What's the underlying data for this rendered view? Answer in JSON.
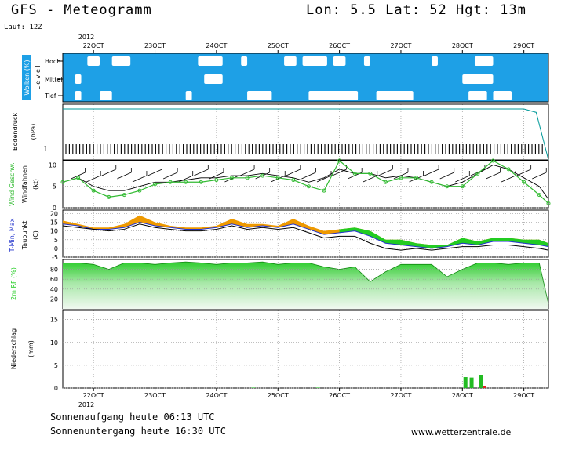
{
  "header": {
    "title": "GFS - Meteogramm",
    "location": "Lon: 5.5 Lat: 52 Hgt: 13m",
    "run": "Lauf: 12Z"
  },
  "footer": {
    "sunrise": "Sonnenaufgang heute 06:13 UTC",
    "sunset": "Sonnenuntergang heute 16:30 UTC",
    "credit": "www.wetterzentrale.de"
  },
  "colors": {
    "cloud_bg": "#1ea0e6",
    "wind": "#33bb33",
    "t_max_fill": "#ee9900",
    "t_min_fill": "#22cc22",
    "rh_fill": "#22cc22",
    "precip": "#22bb22",
    "precip_red": "#dd2222",
    "grid": "#999999"
  },
  "chart_data": [
    {
      "type": "heatmap",
      "panel": "clouds",
      "ylabel": "Wolken (%)",
      "ylabel2": "L e v e l",
      "levels": [
        "Hoch",
        "Mittel",
        "Tief"
      ],
      "x_year": "2012",
      "x_ticks": [
        "22OCT",
        "23OCT",
        "24OCT",
        "25OCT",
        "26OCT",
        "27OCT",
        "28OCT",
        "29OCT"
      ],
      "cloud_patches": [
        {
          "level": "Hoch",
          "x_from": 21.9,
          "x_to": 22.1
        },
        {
          "level": "Hoch",
          "x_from": 22.3,
          "x_to": 22.6
        },
        {
          "level": "Hoch",
          "x_from": 23.7,
          "x_to": 24.1
        },
        {
          "level": "Hoch",
          "x_from": 24.4,
          "x_to": 24.5
        },
        {
          "level": "Hoch",
          "x_from": 25.1,
          "x_to": 25.3
        },
        {
          "level": "Hoch",
          "x_from": 25.4,
          "x_to": 25.8
        },
        {
          "level": "Hoch",
          "x_from": 25.9,
          "x_to": 26.1
        },
        {
          "level": "Hoch",
          "x_from": 26.4,
          "x_to": 26.5
        },
        {
          "level": "Hoch",
          "x_from": 27.5,
          "x_to": 27.6
        },
        {
          "level": "Hoch",
          "x_from": 28.2,
          "x_to": 28.5
        },
        {
          "level": "Mittel",
          "x_from": 21.7,
          "x_to": 21.8
        },
        {
          "level": "Mittel",
          "x_from": 23.8,
          "x_to": 24.1
        },
        {
          "level": "Mittel",
          "x_from": 28.0,
          "x_to": 28.5
        },
        {
          "level": "Tief",
          "x_from": 21.7,
          "x_to": 21.8
        },
        {
          "level": "Tief",
          "x_from": 22.1,
          "x_to": 22.3
        },
        {
          "level": "Tief",
          "x_from": 23.5,
          "x_to": 23.6
        },
        {
          "level": "Tief",
          "x_from": 24.5,
          "x_to": 24.9
        },
        {
          "level": "Tief",
          "x_from": 25.5,
          "x_to": 26.3
        },
        {
          "level": "Tief",
          "x_from": 26.6,
          "x_to": 27.2
        },
        {
          "level": "Tief",
          "x_from": 28.1,
          "x_to": 28.4
        },
        {
          "level": "Tief",
          "x_from": 28.5,
          "x_to": 28.8
        }
      ]
    },
    {
      "type": "line",
      "panel": "pressure",
      "ylabel": "Bodendruck",
      "ylabel2": "(hPa)",
      "y_tick_note": "1",
      "x": [
        21.5,
        29.0,
        29.2,
        29.4
      ],
      "values": [
        1020,
        1020,
        1018,
        990
      ],
      "ylim": [
        990,
        1020
      ]
    },
    {
      "type": "line",
      "panel": "wind",
      "ylabel": "Wind Geschw.",
      "ylabel2": "Windfahnen",
      "ylabel3": "(kt)",
      "y_ticks": [
        "0",
        "5",
        "10"
      ],
      "ylim": [
        0,
        11
      ],
      "x": [
        21.5,
        21.75,
        22.0,
        22.25,
        22.5,
        22.75,
        23.0,
        23.25,
        23.5,
        23.75,
        24.0,
        24.25,
        24.5,
        24.75,
        25.0,
        25.25,
        25.5,
        25.75,
        26.0,
        26.25,
        26.5,
        26.75,
        27.0,
        27.25,
        27.5,
        27.75,
        28.0,
        28.25,
        28.5,
        28.75,
        29.0,
        29.25,
        29.4
      ],
      "series": [
        {
          "values": [
            6,
            7,
            4,
            2.5,
            3,
            4,
            5.5,
            6,
            6,
            6,
            6.5,
            7,
            7,
            7.5,
            7,
            6.5,
            5,
            4,
            11,
            8,
            8,
            6,
            7,
            7,
            6,
            5,
            5,
            8,
            11,
            9,
            6,
            3,
            1
          ]
        },
        {
          "values": [
            6,
            7,
            5,
            4,
            4,
            5,
            6,
            6,
            6.5,
            7,
            7,
            7.5,
            7.5,
            8,
            7.5,
            7,
            6,
            7,
            9,
            8,
            8,
            7,
            7.5,
            7,
            6,
            5,
            6,
            8,
            10,
            9,
            7,
            5,
            2
          ]
        }
      ]
    },
    {
      "type": "area",
      "panel": "temperature",
      "ylabel": "T-Min, Max",
      "ylabel2": "Taupunkt",
      "ylabel3": "(C)",
      "y_ticks": [
        "-5",
        "0",
        "5",
        "10",
        "15",
        "20"
      ],
      "ylim": [
        -5,
        22
      ],
      "x": [
        21.5,
        21.75,
        22.0,
        22.25,
        22.5,
        22.75,
        23.0,
        23.25,
        23.5,
        23.75,
        24.0,
        24.25,
        24.5,
        24.75,
        25.0,
        25.25,
        25.5,
        25.75,
        26.0,
        26.25,
        26.5,
        26.75,
        27.0,
        27.25,
        27.5,
        27.75,
        28.0,
        28.25,
        28.5,
        28.75,
        29.0,
        29.25,
        29.4
      ],
      "series": [
        {
          "name": "Max",
          "values": [
            16,
            14,
            12,
            12,
            14,
            19,
            15,
            13,
            12,
            12,
            13,
            17,
            14,
            14,
            13,
            17,
            13,
            10,
            11,
            12,
            10,
            5,
            5,
            3,
            2,
            2,
            6,
            4,
            6,
            6,
            5,
            5,
            3
          ]
        },
        {
          "name": "Min",
          "values": [
            14,
            13,
            11,
            11,
            12,
            15,
            13,
            12,
            11,
            11,
            12,
            14,
            12,
            13,
            12,
            14,
            11,
            8,
            9,
            10,
            7,
            3,
            2,
            1,
            0,
            1,
            3,
            2,
            4,
            4,
            3,
            2,
            1
          ]
        },
        {
          "name": "Taupunkt",
          "values": [
            13,
            12,
            11,
            10,
            11,
            14,
            12,
            11,
            10,
            10,
            11,
            13,
            11,
            12,
            11,
            12,
            9,
            6,
            7,
            7,
            3,
            0,
            -1,
            0,
            -1,
            0,
            1,
            1,
            2,
            2,
            1,
            0,
            -1
          ]
        }
      ]
    },
    {
      "type": "area",
      "panel": "humidity",
      "ylabel": "2m RF (%)",
      "y_ticks": [
        "20",
        "40",
        "60",
        "80"
      ],
      "ylim": [
        0,
        100
      ],
      "x": [
        21.5,
        21.75,
        22.0,
        22.25,
        22.5,
        22.75,
        23.0,
        23.25,
        23.5,
        23.75,
        24.0,
        24.25,
        24.5,
        24.75,
        25.0,
        25.25,
        25.5,
        25.75,
        26.0,
        26.25,
        26.5,
        26.75,
        27.0,
        27.25,
        27.5,
        27.75,
        28.0,
        28.25,
        28.5,
        28.75,
        29.0,
        29.25,
        29.4
      ],
      "values": [
        93,
        93,
        90,
        80,
        93,
        93,
        90,
        93,
        95,
        93,
        90,
        93,
        93,
        95,
        90,
        93,
        93,
        85,
        80,
        85,
        55,
        75,
        90,
        90,
        90,
        65,
        80,
        93,
        93,
        90,
        93,
        93,
        10
      ]
    },
    {
      "type": "bar",
      "panel": "precipitation",
      "ylabel": "Niederschlag",
      "ylabel2": "(mm)",
      "y_ticks": [
        "0",
        "5",
        "10",
        "15"
      ],
      "ylim": [
        0,
        17
      ],
      "x_year": "2012",
      "x_ticks": [
        "22OCT",
        "23OCT",
        "24OCT",
        "25OCT",
        "26OCT",
        "27OCT",
        "28OCT",
        "29OCT"
      ],
      "bars": [
        {
          "x": 28.05,
          "value": 2.4,
          "color": "green"
        },
        {
          "x": 28.15,
          "value": 2.3,
          "color": "green"
        },
        {
          "x": 28.3,
          "value": 2.9,
          "color": "green"
        },
        {
          "x": 28.36,
          "value": 0.4,
          "color": "red"
        },
        {
          "x": 25.65,
          "value": 0.1,
          "color": "green"
        },
        {
          "x": 24.6,
          "value": 0.1,
          "color": "green"
        }
      ]
    }
  ]
}
